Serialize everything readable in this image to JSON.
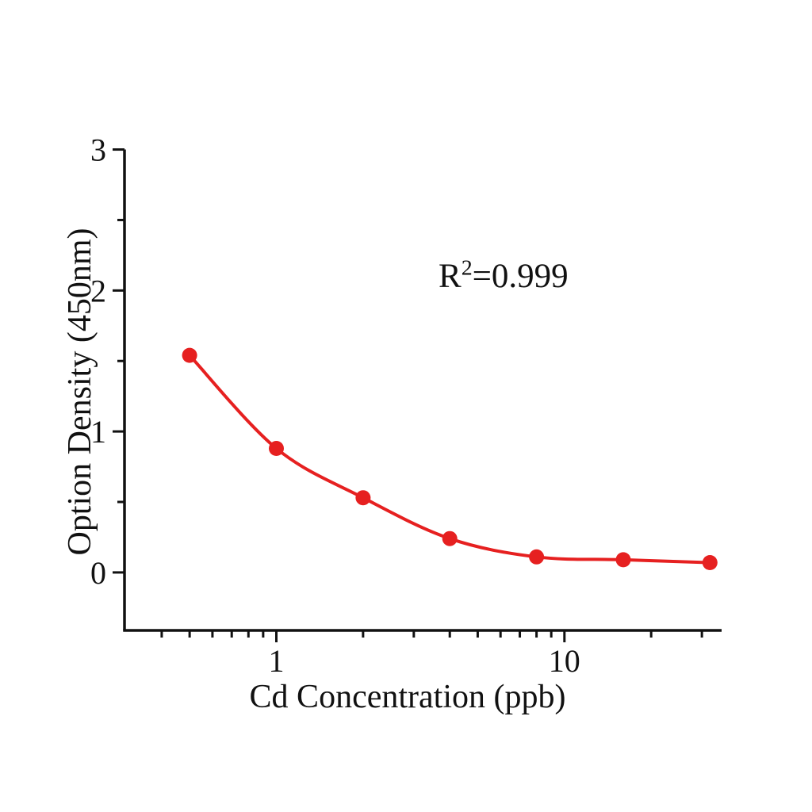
{
  "colors": {
    "series": "#e62020",
    "axis": "#111111",
    "text": "#111111",
    "background": "#ffffff"
  },
  "annotation": {
    "base": "R",
    "sup": "2",
    "rest": "=0.999"
  },
  "chart_data": {
    "type": "scatter",
    "title": "",
    "xlabel": "Cd Concentration (ppb)",
    "ylabel": "Option Density (450nm)",
    "x_scale": "log",
    "y_scale": "linear",
    "xlim": [
      0.3,
      35
    ],
    "ylim": [
      -0.42,
      3
    ],
    "grid": false,
    "legend": false,
    "marker": "circle",
    "line": "smooth-fit-curve",
    "annotation_text": "R2=0.999",
    "x": [
      0.5,
      1,
      2,
      4,
      8,
      16,
      32
    ],
    "y": [
      1.54,
      0.88,
      0.53,
      0.24,
      0.11,
      0.09,
      0.07
    ],
    "x_major_ticks": [
      1,
      10
    ],
    "x_major_tick_labels": [
      "1",
      "10"
    ],
    "x_minor_ticks": [
      0.4,
      0.5,
      0.6,
      0.7,
      0.8,
      0.9,
      2,
      3,
      4,
      5,
      6,
      7,
      8,
      9,
      20,
      30
    ],
    "y_major_ticks": [
      3,
      2,
      1,
      0
    ],
    "y_major_tick_labels": [
      "3",
      "2",
      "1",
      "0"
    ],
    "y_minor_ticks": [
      2.5,
      1.5,
      0.5
    ]
  }
}
